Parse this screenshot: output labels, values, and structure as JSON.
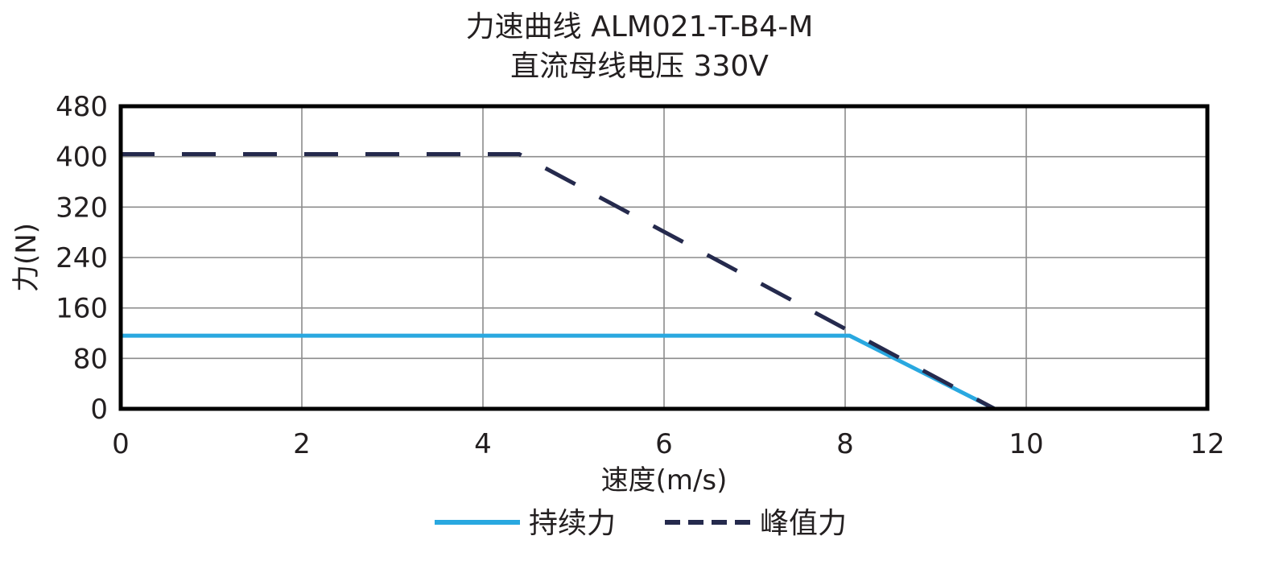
{
  "chart_data": {
    "type": "line",
    "title": "力速曲线 ALM021-T-B4-M",
    "subtitle": "直流母线电压 330V",
    "xlabel": "速度(m/s)",
    "ylabel": "力(N)",
    "xlim": [
      0,
      12
    ],
    "ylim": [
      0,
      480
    ],
    "xticks": [
      "0",
      "2",
      "4",
      "6",
      "8",
      "10",
      "12"
    ],
    "yticks": [
      "0",
      "80",
      "160",
      "240",
      "320",
      "400",
      "480"
    ],
    "xtick_values": [
      0,
      2,
      4,
      6,
      8,
      10,
      12
    ],
    "ytick_values": [
      0,
      80,
      160,
      240,
      320,
      400,
      480
    ],
    "grid": true,
    "legend_position": "bottom",
    "series": [
      {
        "name": "持续力",
        "style": "solid",
        "color": "#29a8e0",
        "points": [
          [
            0,
            116
          ],
          [
            8.05,
            116
          ],
          [
            9.65,
            0
          ]
        ]
      },
      {
        "name": "峰值力",
        "style": "dashed",
        "color": "#252a4d",
        "points": [
          [
            0,
            404
          ],
          [
            4.4,
            404
          ],
          [
            9.65,
            0
          ]
        ]
      }
    ]
  }
}
